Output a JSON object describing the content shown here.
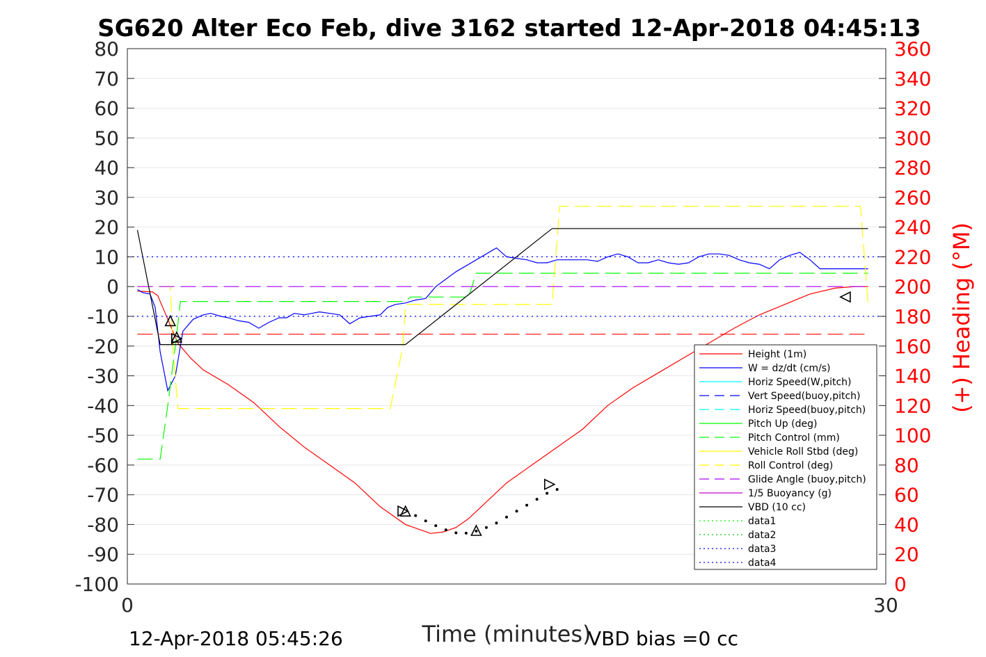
{
  "chart_data": {
    "type": "line",
    "title": "SG620 Alter Eco Feb, dive 3162 started 12-Apr-2018 04:45:13",
    "xlabel": "Time (minutes)",
    "ylabel_right": "(+) Heading (°M)",
    "xlim": [
      0,
      30
    ],
    "ylim_left": [
      -100,
      80
    ],
    "ylim_right": [
      0,
      360
    ],
    "xticks": [
      "0",
      "30"
    ],
    "yticks_left": [
      "80",
      "70",
      "60",
      "50",
      "40",
      "30",
      "20",
      "10",
      "0",
      "-10",
      "-20",
      "-30",
      "-40",
      "-50",
      "-60",
      "-70",
      "-80",
      "-90",
      "-100"
    ],
    "yticks_right": [
      "360",
      "340",
      "320",
      "300",
      "280",
      "260",
      "240",
      "220",
      "200",
      "180",
      "160",
      "140",
      "120",
      "100",
      "80",
      "60",
      "40",
      "20",
      "0"
    ],
    "footer_left": "12-Apr-2018 05:45:26",
    "footer_right": "VBD bias =0 cc",
    "grid": "horizontal",
    "legend_position": "lower-right",
    "series": [
      {
        "name": "Height (1m)",
        "color": "#ff0000",
        "style": "solid",
        "x": [
          0.4,
          1.0,
          1.2,
          1.5,
          2.0,
          2.5,
          3.0,
          4.0,
          5.0,
          6.0,
          7.0,
          8.0,
          9.0,
          10.0,
          11.0,
          12.0,
          12.5,
          13.0,
          13.5,
          14.0,
          15.0,
          16.0,
          17.0,
          18.0,
          19.0,
          20.0,
          21.0,
          22.0,
          23.0,
          24.0,
          25.0,
          26.0,
          27.0,
          28.0,
          28.8,
          29.3
        ],
        "y": [
          -1.5,
          -1.8,
          -3,
          -9,
          -19,
          -24,
          -28,
          -33,
          -39,
          -47,
          -54,
          -60,
          -66,
          -74,
          -80,
          -83,
          -82.5,
          -81,
          -78,
          -74,
          -66,
          -60,
          -54,
          -48,
          -40,
          -34,
          -29,
          -24,
          -19,
          -14,
          -9.5,
          -6,
          -2.5,
          -0.5,
          0,
          0
        ]
      },
      {
        "name": "W = dz/dt (cm/s)",
        "color": "#0000ff",
        "style": "solid",
        "x": [
          0.4,
          0.6,
          0.9,
          1.1,
          1.3,
          1.6,
          1.9,
          2.2,
          2.6,
          3.0,
          3.3,
          3.7,
          4.0,
          4.4,
          4.8,
          5.2,
          5.6,
          6.0,
          6.3,
          6.6,
          7.0,
          7.3,
          7.6,
          8.0,
          8.4,
          8.8,
          9.2,
          9.6,
          10.0,
          10.3,
          10.6,
          11.0,
          11.4,
          11.8,
          12.2,
          12.6,
          13.0,
          13.4,
          13.8,
          14.2,
          14.6,
          15.0,
          15.4,
          15.8,
          16.2,
          16.6,
          17.0,
          17.4,
          17.8,
          18.2,
          18.6,
          19.0,
          19.4,
          19.8,
          20.2,
          20.6,
          21.0,
          21.4,
          21.8,
          22.2,
          22.6,
          23.0,
          23.4,
          23.8,
          24.2,
          24.6,
          25.0,
          25.4,
          25.8,
          26.2,
          26.6,
          27.0,
          27.4,
          27.8,
          28.2,
          28.6,
          29.0,
          29.3
        ],
        "y": [
          -1,
          -2,
          -2.5,
          -7,
          -22,
          -35,
          -30,
          -15,
          -11,
          -9.5,
          -9,
          -10,
          -10.5,
          -11.5,
          -12,
          -14,
          -12,
          -10.5,
          -10.5,
          -9,
          -9.5,
          -9,
          -8.5,
          -9,
          -9.5,
          -12.5,
          -10.5,
          -10,
          -9.5,
          -7,
          -6,
          -5.5,
          -4.5,
          -4,
          0,
          2.5,
          5,
          7,
          9,
          11,
          13,
          10,
          9.5,
          9,
          8,
          8,
          9,
          9,
          9,
          9,
          8.5,
          10,
          11,
          10,
          8,
          8,
          9,
          8,
          7.5,
          8,
          10,
          11,
          11,
          10.5,
          9,
          8,
          7.5,
          6,
          9,
          10.5,
          11.5,
          9,
          6,
          6,
          6,
          6,
          6,
          6
        ]
      },
      {
        "name": "Horiz Speed(W,pitch)",
        "color": "#00ffff",
        "style": "solid",
        "x": [],
        "y": []
      },
      {
        "name": "Vert Speed(buoy,pitch)",
        "color": "#0000ff",
        "style": "dashed",
        "x": [],
        "y": []
      },
      {
        "name": "Horiz Speed(buoy,pitch)",
        "color": "#00ffff",
        "style": "dashed",
        "x": [],
        "y": []
      },
      {
        "name": "Pitch Up (deg)",
        "color": "#00ff00",
        "style": "solid",
        "x": [],
        "y": []
      },
      {
        "name": "Pitch Control (mm)",
        "color": "#00ff00",
        "style": "dashed",
        "x": [
          0.4,
          1.3,
          1.6,
          1.9,
          2.1,
          11.0,
          11.2,
          13.5,
          13.8,
          29.3
        ],
        "y": [
          -58,
          -58,
          -40,
          -20,
          -5,
          -5,
          -3.5,
          -3.5,
          4.5,
          4.5
        ]
      },
      {
        "name": "Vehicle Roll Stbd (deg)",
        "color": "#ffff00",
        "style": "solid",
        "x": [],
        "y": []
      },
      {
        "name": "Roll Control (deg)",
        "color": "#ffff00",
        "style": "dashed",
        "x": [
          0.4,
          1.7,
          1.8,
          2.0,
          10.4,
          10.9,
          11.0,
          16.8,
          17.1,
          29.0,
          29.3
        ],
        "y": [
          0,
          0,
          -20,
          -41,
          -41,
          -20,
          -6,
          -6,
          27,
          27,
          -6
        ]
      },
      {
        "name": "Glide Angle (buoy,pitch)",
        "color": "#aa00ff",
        "style": "dashed",
        "x": [
          0.4,
          29.3
        ],
        "y": [
          0,
          0
        ]
      },
      {
        "name": "1/5 Buoyancy (g)",
        "color": "#cc00cc",
        "style": "solid",
        "x": [],
        "y": []
      },
      {
        "name": "VBD (10 cc)",
        "color": "#000000",
        "style": "solid",
        "x": [
          0.4,
          1.3,
          11.0,
          16.8,
          29.3
        ],
        "y": [
          19,
          -19.5,
          -19.5,
          19.5,
          19.5
        ]
      },
      {
        "name": "data1",
        "color": "#00ff00",
        "style": "dotted",
        "x": [],
        "y": []
      },
      {
        "name": "data2",
        "color": "#00cc00",
        "style": "dotted",
        "x": [],
        "y": []
      },
      {
        "name": "data3",
        "color": "#0000ff",
        "style": "dotted",
        "x": [
          0,
          30
        ],
        "y": [
          10,
          10
        ]
      },
      {
        "name": "data4",
        "color": "#0000ff",
        "style": "dotted",
        "x": [
          0,
          30
        ],
        "y": [
          -10,
          -10
        ]
      }
    ],
    "reference_lines": [
      {
        "name": "red-dashed-height",
        "color": "#ff0000",
        "style": "dashed",
        "x": [
          0.4,
          29.3
        ],
        "y": [
          -16,
          -16
        ]
      }
    ],
    "dotted_segment": {
      "color": "#000000",
      "x": [
        11.4,
        11.8,
        12.2,
        12.6,
        13.0,
        13.4,
        13.8,
        14.2,
        14.6,
        15.0,
        15.4,
        15.8,
        16.2,
        16.6,
        17.0
      ],
      "y": [
        -77,
        -78.8,
        -80.4,
        -81.8,
        -82.8,
        -82.9,
        -82.2,
        -81,
        -79.5,
        -77.5,
        -75.5,
        -73.5,
        -71.5,
        -69.5,
        -68.2
      ]
    },
    "markers": [
      {
        "shape": "triangle-up",
        "x": 1.7,
        "y": -11.5
      },
      {
        "shape": "triangle-up",
        "x": 1.95,
        "y": -17
      },
      {
        "shape": "triangle-right",
        "x": 1.95,
        "y": -17.5
      },
      {
        "shape": "triangle-right",
        "x": 10.9,
        "y": -75.5
      },
      {
        "shape": "triangle-up",
        "x": 11.0,
        "y": -75.5
      },
      {
        "shape": "triangle-up",
        "x": 13.8,
        "y": -82
      },
      {
        "shape": "triangle-right",
        "x": 16.7,
        "y": -66.5
      },
      {
        "shape": "triangle-left",
        "x": 28.4,
        "y": -3.5
      }
    ]
  }
}
